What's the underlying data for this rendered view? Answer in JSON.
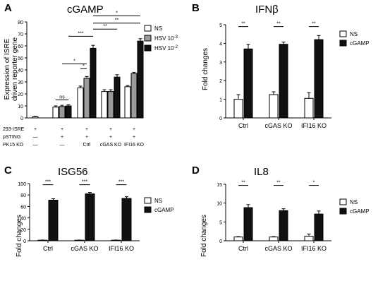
{
  "colors": {
    "ns": "#ffffff",
    "mid": "#9a9a9a",
    "dark": "#111111",
    "axis": "#000000"
  },
  "chart_data": [
    {
      "panel": "A",
      "type": "bar",
      "title": "cGAMP",
      "ylabel": "Expression of ISRE driven reporter gene",
      "ylabel_lines": [
        "Expression of ISRE",
        "driven reporter gene"
      ],
      "ylim": [
        0,
        80
      ],
      "yticks": [
        "0",
        "10",
        "20",
        "30",
        "40",
        "50",
        "60",
        "70",
        "80"
      ],
      "series": [
        {
          "name": "NS",
          "color": "#ffffff"
        },
        {
          "name": "HSV 10-3",
          "legend_base": "HSV 10",
          "legend_sup": "-3",
          "color": "#9a9a9a"
        },
        {
          "name": "HSV 10-2",
          "legend_base": "HSV 10",
          "legend_sup": "-2",
          "color": "#111111"
        }
      ],
      "groups": [
        {
          "label": "",
          "bars": [
            {
              "series": 0,
              "value": 1,
              "err": 0.3
            }
          ]
        },
        {
          "label": "",
          "bars": [
            {
              "series": 0,
              "value": 9,
              "err": 1
            },
            {
              "series": 1,
              "value": 9.5,
              "err": 1
            },
            {
              "series": 2,
              "value": 10,
              "err": 1
            }
          ]
        },
        {
          "label": "Ctrl",
          "bars": [
            {
              "series": 0,
              "value": 25,
              "err": 1.5
            },
            {
              "series": 1,
              "value": 33,
              "err": 1.5
            },
            {
              "series": 2,
              "value": 58,
              "err": 2.5
            }
          ]
        },
        {
          "label": "cGAS KO",
          "bars": [
            {
              "series": 0,
              "value": 22,
              "err": 1.5
            },
            {
              "series": 1,
              "value": 22,
              "err": 1.5
            },
            {
              "series": 2,
              "value": 34,
              "err": 2
            }
          ]
        },
        {
          "label": "IFI16 KO",
          "bars": [
            {
              "series": 0,
              "value": 26,
              "err": 1
            },
            {
              "series": 1,
              "value": 37,
              "err": 1
            },
            {
              "series": 2,
              "value": 64,
              "err": 2
            }
          ]
        }
      ],
      "condition_rows": [
        {
          "label": "293-ISRE",
          "values": [
            "+",
            "+",
            "+",
            "+",
            "+"
          ]
        },
        {
          "label": "pSTING",
          "values": [
            "—",
            "+",
            "+",
            "+",
            "+"
          ]
        },
        {
          "label": "PK15 KO",
          "values": [
            "—",
            "—",
            "Ctrl",
            "cGAS KO",
            "IFI16 KO"
          ]
        }
      ],
      "significance": [
        {
          "label": "ns",
          "from": [
            1,
            0
          ],
          "to": [
            1,
            2
          ],
          "y": 15
        },
        {
          "label": "*",
          "from": [
            2,
            0
          ],
          "to": [
            2,
            1
          ],
          "y": 41
        },
        {
          "label": "*",
          "from": [
            1,
            1
          ],
          "to": [
            2,
            1
          ],
          "y": 45
        },
        {
          "label": "***",
          "from": [
            1,
            2
          ],
          "to": [
            2,
            2
          ],
          "y": 68
        },
        {
          "label": "**",
          "from": [
            2,
            2
          ],
          "to": [
            3,
            2
          ],
          "y": 74
        },
        {
          "label": "**",
          "from": [
            2,
            2
          ],
          "to": [
            4,
            2
          ],
          "y": 79
        },
        {
          "label": "*",
          "from": [
            2,
            2
          ],
          "to": [
            4,
            2
          ],
          "y": 85
        }
      ]
    },
    {
      "panel": "B",
      "type": "bar",
      "title": "IFNβ",
      "ylabel": "Fold changes",
      "ylim": [
        0,
        5
      ],
      "yticks": [
        "0",
        "1",
        "2",
        "3",
        "4",
        "5"
      ],
      "categories": [
        "Ctrl",
        "cGAS KO",
        "IFI16 KO"
      ],
      "series": [
        {
          "name": "NS",
          "values": [
            1.0,
            1.25,
            1.05
          ],
          "errors": [
            0.25,
            0.15,
            0.3
          ],
          "color": "#ffffff"
        },
        {
          "name": "cGAMP",
          "values": [
            3.7,
            3.95,
            4.2
          ],
          "errors": [
            0.25,
            0.12,
            0.22
          ],
          "color": "#111111"
        }
      ],
      "significance": [
        "**",
        "**",
        "**"
      ]
    },
    {
      "panel": "C",
      "type": "bar",
      "title": "ISG56",
      "ylabel": "Fold changes",
      "ylim": [
        0,
        100
      ],
      "yticks": [
        "0",
        "20",
        "40",
        "60",
        "80",
        "100"
      ],
      "categories": [
        "Ctrl",
        "cGAS KO",
        "IFI16 KO"
      ],
      "series": [
        {
          "name": "NS",
          "values": [
            1,
            1,
            1
          ],
          "errors": [
            0.3,
            0.3,
            0.3
          ],
          "color": "#ffffff"
        },
        {
          "name": "cGAMP",
          "values": [
            71,
            82,
            74
          ],
          "errors": [
            2.5,
            2.5,
            3
          ],
          "color": "#111111"
        }
      ],
      "significance": [
        "***",
        "***",
        "***"
      ]
    },
    {
      "panel": "D",
      "type": "bar",
      "title": "IL8",
      "ylabel": "Fold changes",
      "ylim": [
        0,
        15
      ],
      "yticks": [
        "0",
        "5",
        "10",
        "15"
      ],
      "categories": [
        "Ctrl",
        "cGAS KO",
        "IFI16 KO"
      ],
      "series": [
        {
          "name": "NS",
          "values": [
            1.0,
            1.0,
            1.2
          ],
          "errors": [
            0.1,
            0.1,
            0.6
          ],
          "color": "#ffffff"
        },
        {
          "name": "cGAMP",
          "values": [
            8.8,
            8.0,
            7.1
          ],
          "errors": [
            0.8,
            0.5,
            0.8
          ],
          "color": "#111111"
        }
      ],
      "significance": [
        "**",
        "**",
        "*"
      ]
    }
  ]
}
